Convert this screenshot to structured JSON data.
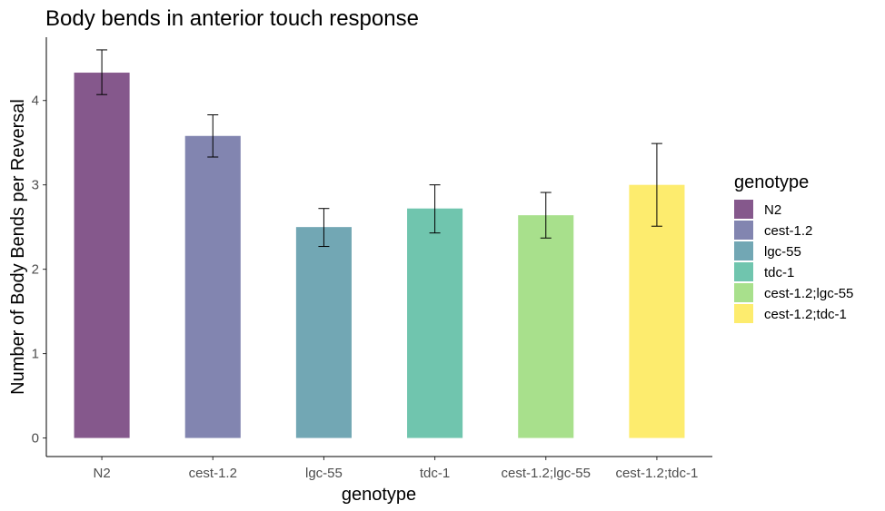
{
  "chart_data": {
    "type": "bar",
    "title": "Body bends in anterior touch response",
    "xlabel": "genotype",
    "ylabel": "Number of Body Bends per Reversal",
    "categories": [
      "N2",
      "cest-1.2",
      "lgc-55",
      "tdc-1",
      "cest-1.2;lgc-55",
      "cest-1.2;tdc-1"
    ],
    "values": [
      4.33,
      3.58,
      2.5,
      2.72,
      2.64,
      3.0
    ],
    "error_low": [
      4.07,
      3.33,
      2.27,
      2.43,
      2.37,
      2.51
    ],
    "error_high": [
      4.6,
      3.83,
      2.72,
      3.0,
      2.91,
      3.49
    ],
    "colors": [
      "#85588C",
      "#8285B0",
      "#72A7B4",
      "#70C5AE",
      "#A8E08C",
      "#FDEC6E"
    ],
    "yticks": [
      0,
      1,
      2,
      3,
      4
    ],
    "ylim": [
      -0.22,
      4.75
    ],
    "grid": false,
    "legend": {
      "title": "genotype",
      "position": "right",
      "entries": [
        "N2",
        "cest-1.2",
        "lgc-55",
        "tdc-1",
        "cest-1.2;lgc-55",
        "cest-1.2;tdc-1"
      ]
    }
  }
}
